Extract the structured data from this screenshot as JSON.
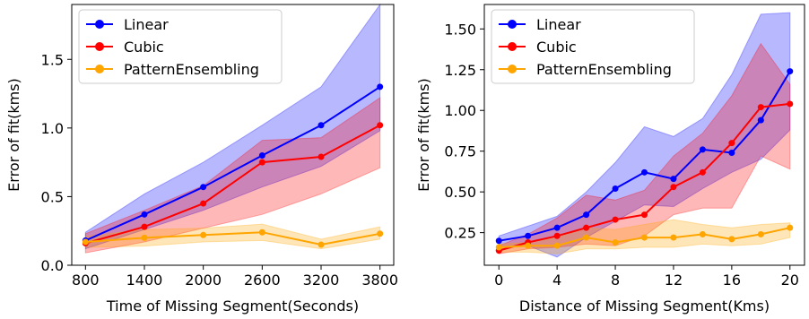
{
  "chart_data": [
    {
      "type": "line",
      "xlabel": "Time of Missing Segment(Seconds)",
      "ylabel": "Error of fit(kms)",
      "x": [
        800,
        1400,
        2000,
        2600,
        3200,
        3800
      ],
      "xticks": [
        "800",
        "1400",
        "2000",
        "2600",
        "3200",
        "3800"
      ],
      "yticks": [
        "0.0",
        "0.5",
        "1.0",
        "1.5"
      ],
      "xlim": [
        660,
        3940
      ],
      "ylim": [
        0,
        1.9
      ],
      "legend_position": "top-left",
      "series": [
        {
          "name": "Linear",
          "color": "#0000ff",
          "values": [
            0.18,
            0.37,
            0.57,
            0.8,
            1.02,
            1.3
          ],
          "band_low": [
            0.12,
            0.26,
            0.4,
            0.57,
            0.72,
            0.98
          ],
          "band_high": [
            0.24,
            0.52,
            0.75,
            1.02,
            1.3,
            1.9
          ]
        },
        {
          "name": "Cubic",
          "color": "#ff0000",
          "values": [
            0.16,
            0.28,
            0.45,
            0.75,
            0.79,
            1.02
          ],
          "band_low": [
            0.09,
            0.17,
            0.27,
            0.37,
            0.52,
            0.71
          ],
          "band_high": [
            0.23,
            0.4,
            0.58,
            0.91,
            0.93,
            1.22
          ]
        },
        {
          "name": "PatternEnsembling",
          "color": "#ffa500",
          "values": [
            0.17,
            0.2,
            0.22,
            0.24,
            0.15,
            0.23
          ],
          "band_low": [
            0.13,
            0.14,
            0.17,
            0.18,
            0.12,
            0.19
          ],
          "band_high": [
            0.21,
            0.26,
            0.27,
            0.3,
            0.19,
            0.28
          ]
        }
      ]
    },
    {
      "type": "line",
      "xlabel": "Distance of Missing Segment(Kms)",
      "ylabel": "Error of fit(kms)",
      "x": [
        0,
        2,
        4,
        6,
        8,
        10,
        12,
        14,
        16,
        18,
        20
      ],
      "xticks": [
        "0",
        "4",
        "8",
        "12",
        "16",
        "20"
      ],
      "yticks": [
        "0.25",
        "0.50",
        "0.75",
        "1.00",
        "1.25",
        "1.50"
      ],
      "xlim": [
        -1,
        21
      ],
      "ylim": [
        0.05,
        1.65
      ],
      "legend_position": "top-left",
      "series": [
        {
          "name": "Linear",
          "color": "#0000ff",
          "values": [
            0.2,
            0.23,
            0.28,
            0.36,
            0.52,
            0.62,
            0.58,
            0.76,
            0.74,
            0.94,
            1.24
          ],
          "band_low": [
            0.16,
            0.17,
            0.1,
            0.22,
            0.32,
            0.42,
            0.41,
            0.52,
            0.62,
            0.7,
            0.88
          ],
          "band_high": [
            0.23,
            0.29,
            0.35,
            0.5,
            0.68,
            0.9,
            0.84,
            0.95,
            1.22,
            1.59,
            1.6
          ]
        },
        {
          "name": "Cubic",
          "color": "#ff0000",
          "values": [
            0.14,
            0.19,
            0.23,
            0.28,
            0.33,
            0.36,
            0.53,
            0.62,
            0.8,
            1.02,
            1.04
          ],
          "band_low": [
            0.12,
            0.15,
            0.16,
            0.18,
            0.17,
            0.23,
            0.36,
            0.4,
            0.4,
            0.72,
            0.64
          ],
          "band_high": [
            0.17,
            0.24,
            0.34,
            0.48,
            0.45,
            0.51,
            0.72,
            0.86,
            1.09,
            1.41,
            1.16
          ]
        },
        {
          "name": "PatternEnsembling",
          "color": "#ffa500",
          "values": [
            0.16,
            0.17,
            0.17,
            0.22,
            0.19,
            0.22,
            0.22,
            0.24,
            0.21,
            0.24,
            0.28
          ],
          "band_low": [
            0.13,
            0.13,
            0.12,
            0.15,
            0.15,
            0.16,
            0.16,
            0.18,
            0.17,
            0.18,
            0.22
          ],
          "band_high": [
            0.18,
            0.19,
            0.22,
            0.28,
            0.27,
            0.3,
            0.33,
            0.3,
            0.28,
            0.3,
            0.31
          ]
        }
      ]
    }
  ]
}
